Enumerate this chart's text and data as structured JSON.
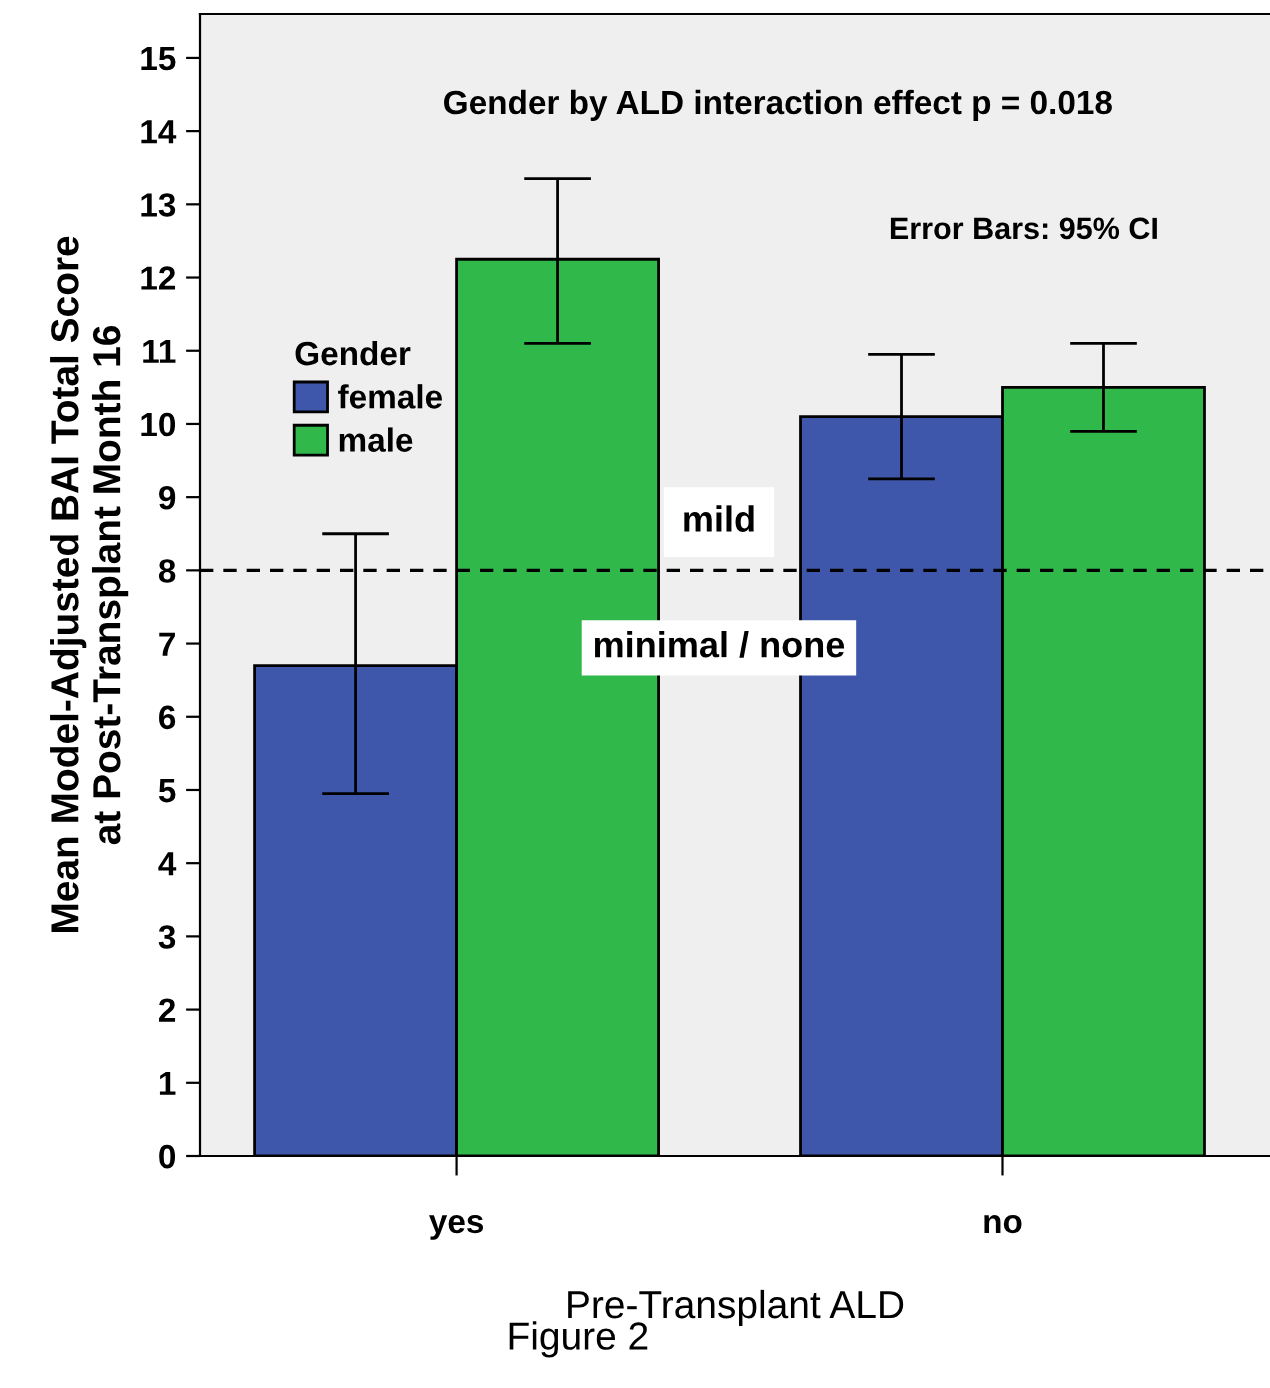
{
  "chart_data": {
    "type": "bar",
    "categories": [
      "yes",
      "no"
    ],
    "series": [
      {
        "name": "female",
        "color": "#3f57aa",
        "values": [
          6.7,
          10.1
        ],
        "errors": [
          [
            4.95,
            8.5
          ],
          [
            9.25,
            10.95
          ]
        ]
      },
      {
        "name": "male",
        "color": "#30b84a",
        "values": [
          12.25,
          10.5
        ],
        "errors": [
          [
            11.1,
            13.35
          ],
          [
            9.9,
            11.1
          ]
        ]
      }
    ],
    "xlabel": "Pre-Transplant ALD",
    "ylabel": "Mean Model-Adjusted BAI Total Score\nat Post-Transplant Month 16",
    "legend_title": "Gender",
    "legend": "top left",
    "ylim": [
      0,
      15.6
    ],
    "yticks": [
      0,
      1,
      2,
      3,
      4,
      5,
      6,
      7,
      8,
      9,
      10,
      11,
      12,
      13,
      14,
      15
    ],
    "grid": false,
    "ref_lines": [
      {
        "axis": "y",
        "value": 8,
        "line_style": "dashed",
        "color": "#000000"
      }
    ],
    "annotations": [
      "Gender by ALD interaction effect p = 0.018",
      "Error Bars: 95% CI",
      "mild",
      "minimal / none",
      "Figure 2"
    ]
  }
}
